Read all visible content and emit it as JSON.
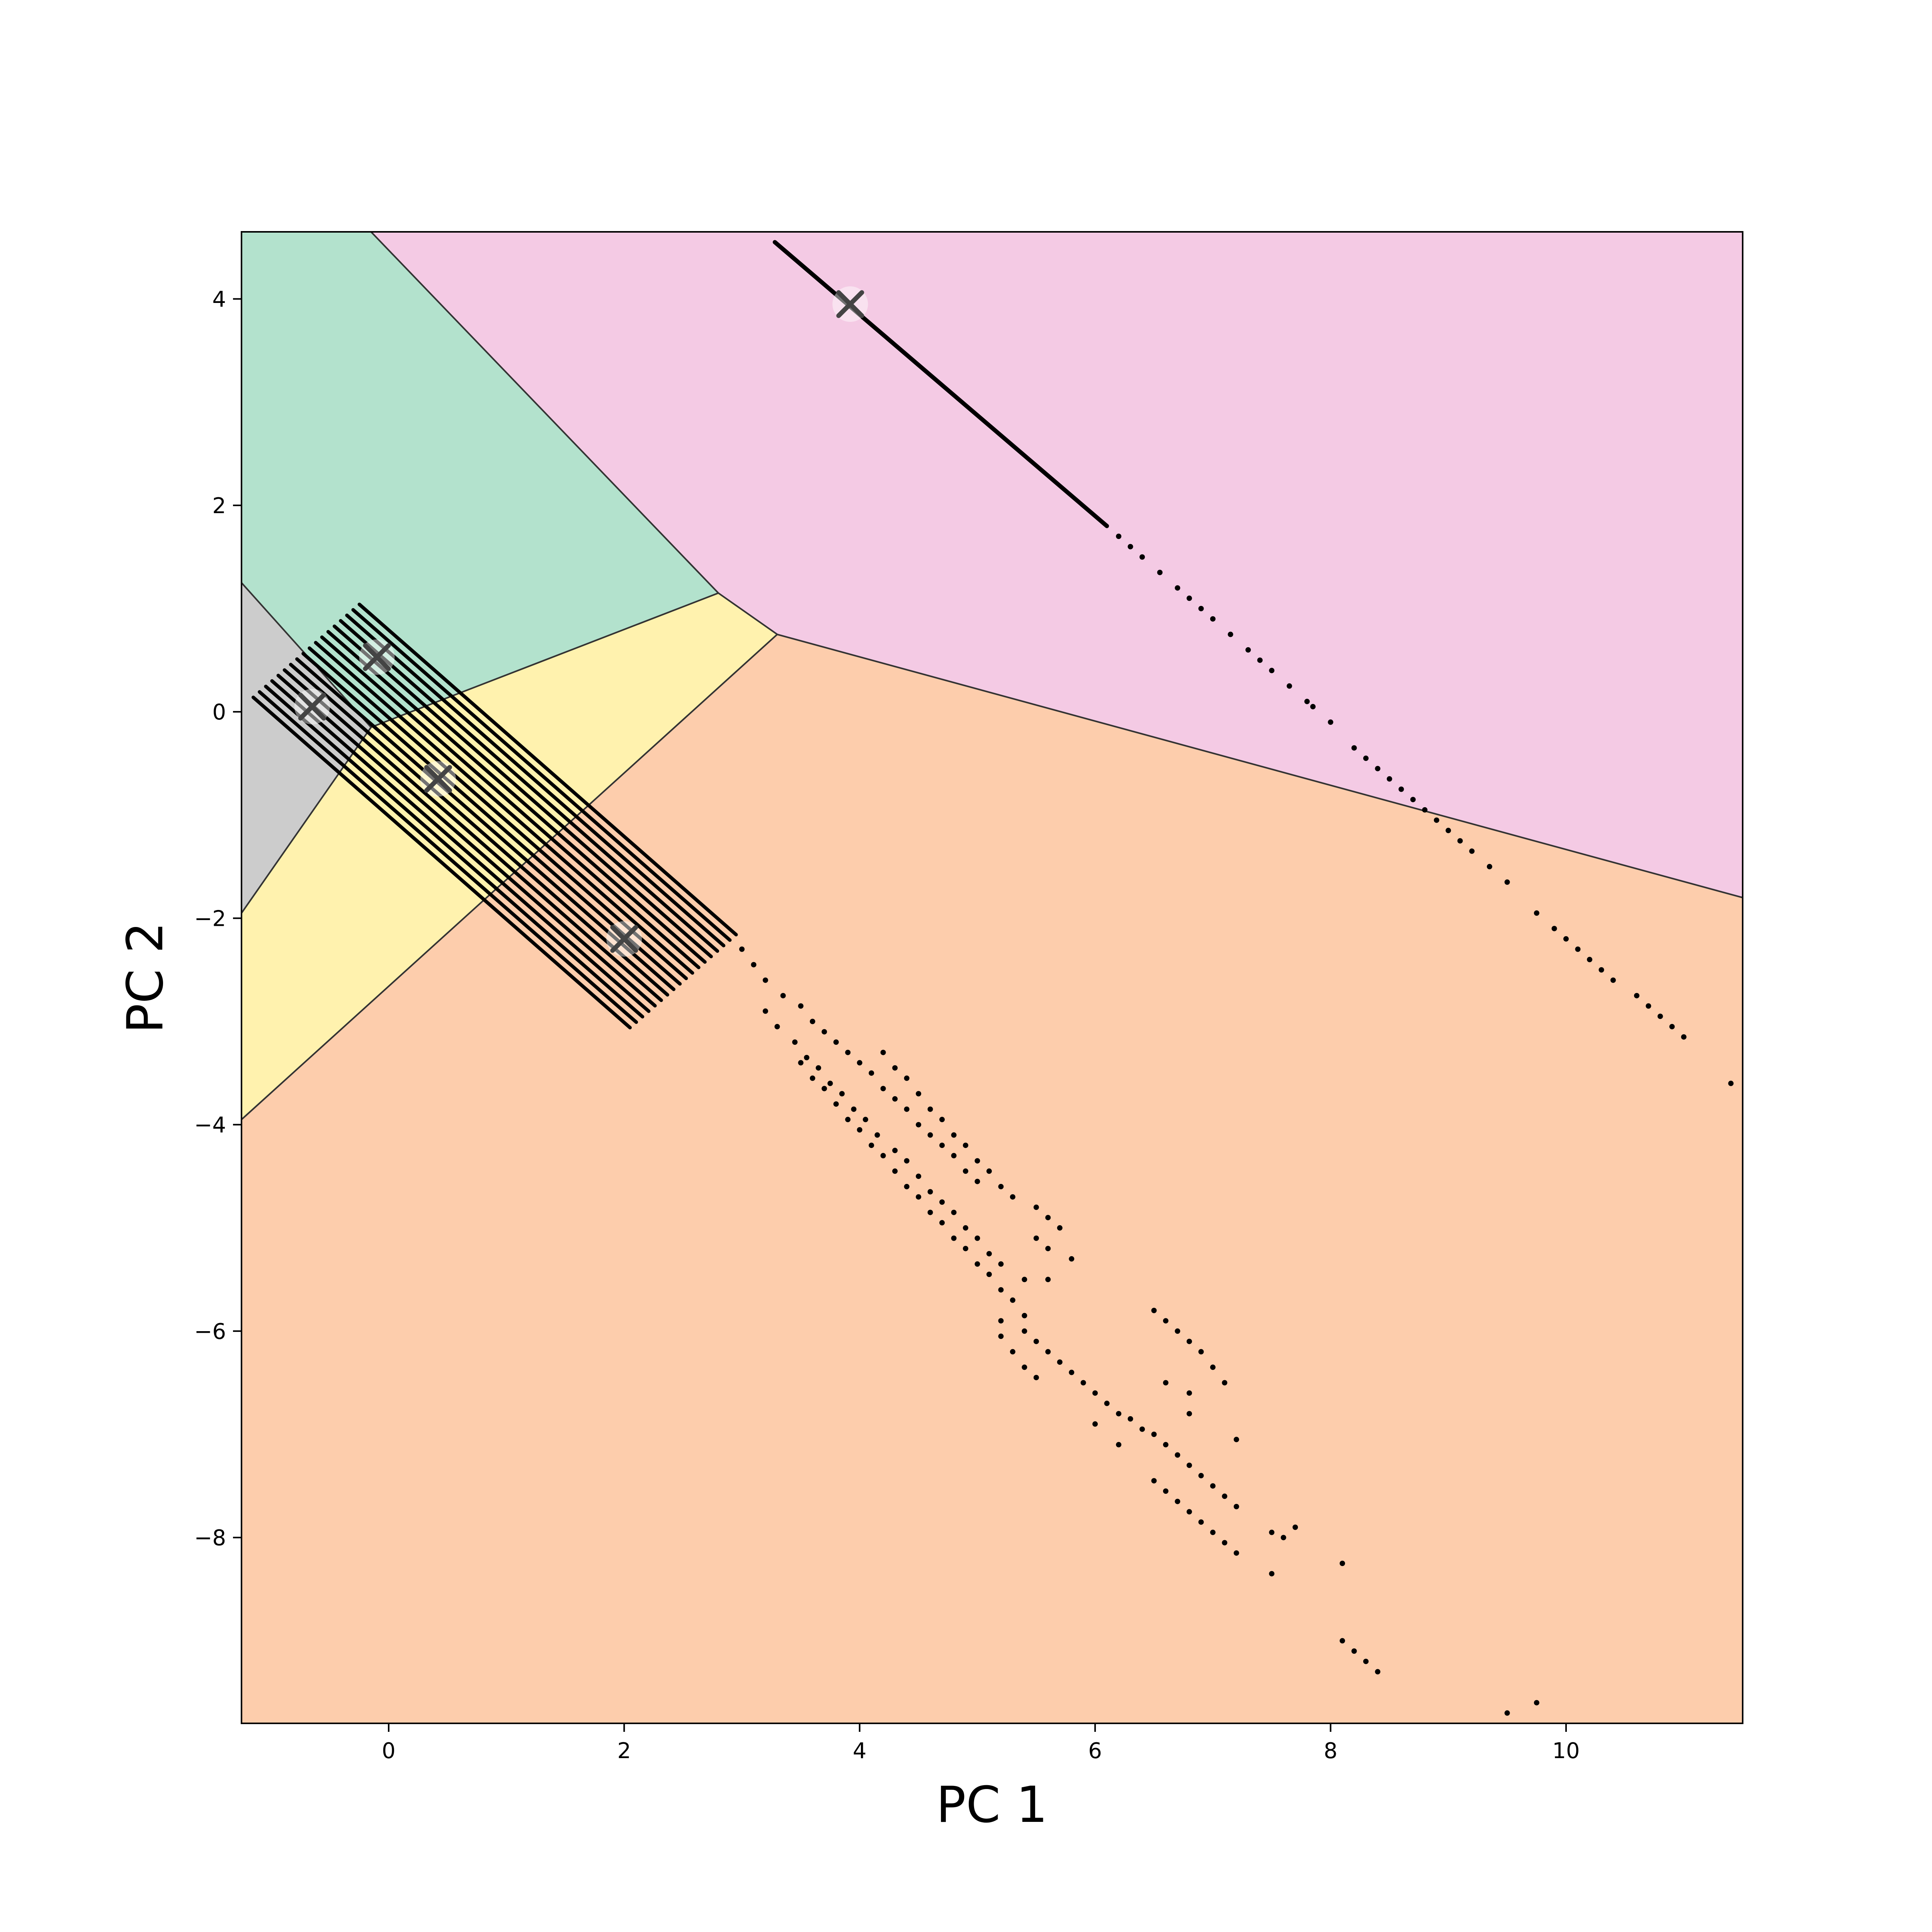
{
  "chart_data": {
    "type": "scatter",
    "title": "",
    "xlabel": "PC 1",
    "ylabel": "PC 2",
    "xlim": [
      -1.25,
      11.5
    ],
    "ylim": [
      -9.8,
      4.65
    ],
    "xticks": [
      0,
      2,
      4,
      6,
      8,
      10
    ],
    "yticks": [
      -8,
      -6,
      -4,
      -2,
      0,
      2,
      4
    ],
    "xtick_labels": [
      "0",
      "2",
      "4",
      "6",
      "8",
      "10"
    ],
    "ytick_labels": [
      "−8",
      "−6",
      "−4",
      "−2",
      "0",
      "2",
      "4"
    ],
    "grid": false,
    "legend": "none",
    "regions": [
      {
        "id": "orange",
        "color": "#fdcdac",
        "polygon": [
          [
            -1.25,
            -3.95
          ],
          [
            3.3,
            0.75
          ],
          [
            11.5,
            -1.8
          ],
          [
            11.5,
            -9.8
          ],
          [
            -1.25,
            -9.8
          ]
        ]
      },
      {
        "id": "pink",
        "color": "#f4cae4",
        "polygon": [
          [
            -0.15,
            4.65
          ],
          [
            11.5,
            4.65
          ],
          [
            11.5,
            -1.8
          ],
          [
            3.3,
            0.75
          ],
          [
            2.8,
            1.15
          ]
        ]
      },
      {
        "id": "green",
        "color": "#b3e2cd",
        "polygon": [
          [
            -1.25,
            4.65
          ],
          [
            -0.15,
            4.65
          ],
          [
            2.8,
            1.15
          ],
          [
            -0.15,
            -0.15
          ],
          [
            -1.25,
            1.25
          ]
        ]
      },
      {
        "id": "yellow",
        "color": "#fff2ae",
        "polygon": [
          [
            -1.25,
            -1.95
          ],
          [
            -0.15,
            -0.15
          ],
          [
            2.8,
            1.15
          ],
          [
            3.3,
            0.75
          ],
          [
            -1.25,
            -3.95
          ]
        ]
      },
      {
        "id": "gray",
        "color": "#cccccc",
        "polygon": [
          [
            -1.25,
            1.25
          ],
          [
            -0.15,
            -0.15
          ],
          [
            -1.25,
            -1.95
          ]
        ]
      }
    ],
    "centroids": [
      {
        "x": -0.65,
        "y": 0.05
      },
      {
        "x": -0.1,
        "y": 0.53
      },
      {
        "x": 0.42,
        "y": -0.65
      },
      {
        "x": 2.0,
        "y": -2.2
      },
      {
        "x": 3.92,
        "y": 3.95
      }
    ],
    "stripes": {
      "count": 18,
      "x_start": -1.15,
      "y_start": 0.14,
      "x_step": 0.053,
      "y_step": 0.053,
      "slope": -1.0,
      "length": 3.2
    },
    "upper_line": {
      "from": [
        3.28,
        4.55
      ],
      "to": [
        6.1,
        1.8
      ]
    },
    "points": [
      [
        6.2,
        1.7
      ],
      [
        6.3,
        1.6
      ],
      [
        6.4,
        1.5
      ],
      [
        6.55,
        1.35
      ],
      [
        6.7,
        1.2
      ],
      [
        6.8,
        1.1
      ],
      [
        6.9,
        1.0
      ],
      [
        7.0,
        0.9
      ],
      [
        7.15,
        0.75
      ],
      [
        7.3,
        0.6
      ],
      [
        7.4,
        0.5
      ],
      [
        7.5,
        0.4
      ],
      [
        7.65,
        0.25
      ],
      [
        7.8,
        0.1
      ],
      [
        7.85,
        0.05
      ],
      [
        8.0,
        -0.1
      ],
      [
        8.2,
        -0.35
      ],
      [
        8.3,
        -0.45
      ],
      [
        8.4,
        -0.55
      ],
      [
        8.5,
        -0.65
      ],
      [
        8.6,
        -0.75
      ],
      [
        8.7,
        -0.85
      ],
      [
        8.8,
        -0.95
      ],
      [
        8.9,
        -1.05
      ],
      [
        9.0,
        -1.15
      ],
      [
        9.1,
        -1.25
      ],
      [
        9.2,
        -1.35
      ],
      [
        9.35,
        -1.5
      ],
      [
        9.5,
        -1.65
      ],
      [
        9.75,
        -1.95
      ],
      [
        9.9,
        -2.1
      ],
      [
        10.0,
        -2.2
      ],
      [
        10.1,
        -2.3
      ],
      [
        10.2,
        -2.4
      ],
      [
        10.3,
        -2.5
      ],
      [
        10.4,
        -2.6
      ],
      [
        10.6,
        -2.75
      ],
      [
        10.7,
        -2.85
      ],
      [
        10.8,
        -2.95
      ],
      [
        10.9,
        -3.05
      ],
      [
        11.0,
        -3.15
      ],
      [
        11.4,
        -3.6
      ],
      [
        3.0,
        -2.3
      ],
      [
        3.1,
        -2.45
      ],
      [
        3.2,
        -2.6
      ],
      [
        3.35,
        -2.75
      ],
      [
        3.5,
        -2.85
      ],
      [
        3.6,
        -3.0
      ],
      [
        3.7,
        -3.1
      ],
      [
        3.8,
        -3.2
      ],
      [
        3.9,
        -3.3
      ],
      [
        4.0,
        -3.4
      ],
      [
        4.1,
        -3.5
      ],
      [
        4.2,
        -3.65
      ],
      [
        4.3,
        -3.75
      ],
      [
        4.4,
        -3.85
      ],
      [
        4.5,
        -4.0
      ],
      [
        4.6,
        -4.1
      ],
      [
        4.7,
        -4.2
      ],
      [
        4.8,
        -4.3
      ],
      [
        4.9,
        -4.45
      ],
      [
        5.0,
        -4.55
      ],
      [
        3.2,
        -2.9
      ],
      [
        3.3,
        -3.05
      ],
      [
        3.45,
        -3.2
      ],
      [
        3.55,
        -3.35
      ],
      [
        3.65,
        -3.45
      ],
      [
        3.75,
        -3.6
      ],
      [
        3.85,
        -3.7
      ],
      [
        3.95,
        -3.85
      ],
      [
        4.05,
        -3.95
      ],
      [
        4.15,
        -4.1
      ],
      [
        4.3,
        -4.25
      ],
      [
        4.4,
        -4.35
      ],
      [
        4.5,
        -4.5
      ],
      [
        4.6,
        -4.65
      ],
      [
        4.7,
        -4.75
      ],
      [
        4.8,
        -4.85
      ],
      [
        4.9,
        -5.0
      ],
      [
        5.0,
        -5.1
      ],
      [
        5.1,
        -5.25
      ],
      [
        5.2,
        -5.35
      ],
      [
        3.5,
        -3.4
      ],
      [
        3.6,
        -3.55
      ],
      [
        3.7,
        -3.65
      ],
      [
        3.8,
        -3.8
      ],
      [
        3.9,
        -3.95
      ],
      [
        4.0,
        -4.05
      ],
      [
        4.1,
        -4.2
      ],
      [
        4.2,
        -4.3
      ],
      [
        4.3,
        -4.45
      ],
      [
        4.4,
        -4.6
      ],
      [
        4.5,
        -4.7
      ],
      [
        4.6,
        -4.85
      ],
      [
        4.7,
        -4.95
      ],
      [
        4.8,
        -5.1
      ],
      [
        4.9,
        -5.2
      ],
      [
        5.0,
        -5.35
      ],
      [
        5.1,
        -5.45
      ],
      [
        5.2,
        -5.6
      ],
      [
        5.3,
        -5.7
      ],
      [
        5.4,
        -5.85
      ],
      [
        4.2,
        -3.3
      ],
      [
        4.3,
        -3.45
      ],
      [
        4.4,
        -3.55
      ],
      [
        4.5,
        -3.7
      ],
      [
        4.6,
        -3.85
      ],
      [
        4.7,
        -3.95
      ],
      [
        4.8,
        -4.1
      ],
      [
        4.9,
        -4.2
      ],
      [
        5.0,
        -4.35
      ],
      [
        5.1,
        -4.45
      ],
      [
        5.2,
        -4.6
      ],
      [
        5.3,
        -4.7
      ],
      [
        5.5,
        -4.8
      ],
      [
        5.6,
        -4.9
      ],
      [
        5.7,
        -5.0
      ],
      [
        5.5,
        -5.1
      ],
      [
        5.6,
        -5.2
      ],
      [
        5.4,
        -5.5
      ],
      [
        5.6,
        -5.5
      ],
      [
        5.8,
        -5.3
      ],
      [
        5.2,
        -5.9
      ],
      [
        5.4,
        -6.0
      ],
      [
        5.5,
        -6.1
      ],
      [
        5.6,
        -6.2
      ],
      [
        5.7,
        -6.3
      ],
      [
        5.8,
        -6.4
      ],
      [
        5.9,
        -6.5
      ],
      [
        6.0,
        -6.6
      ],
      [
        6.1,
        -6.7
      ],
      [
        6.2,
        -6.8
      ],
      [
        5.2,
        -6.05
      ],
      [
        5.3,
        -6.2
      ],
      [
        5.4,
        -6.35
      ],
      [
        5.5,
        -6.45
      ],
      [
        6.0,
        -6.9
      ],
      [
        6.2,
        -7.1
      ],
      [
        6.3,
        -6.85
      ],
      [
        6.4,
        -6.95
      ],
      [
        6.5,
        -7.0
      ],
      [
        6.6,
        -7.1
      ],
      [
        6.7,
        -7.2
      ],
      [
        6.8,
        -7.3
      ],
      [
        6.9,
        -7.4
      ],
      [
        7.0,
        -7.5
      ],
      [
        7.1,
        -7.6
      ],
      [
        7.2,
        -7.7
      ],
      [
        6.5,
        -5.8
      ],
      [
        6.6,
        -5.9
      ],
      [
        6.7,
        -6.0
      ],
      [
        6.8,
        -6.1
      ],
      [
        6.9,
        -6.2
      ],
      [
        7.0,
        -6.35
      ],
      [
        6.6,
        -6.5
      ],
      [
        6.8,
        -6.6
      ],
      [
        7.1,
        -6.5
      ],
      [
        6.8,
        -6.8
      ],
      [
        7.2,
        -7.05
      ],
      [
        6.5,
        -7.45
      ],
      [
        6.6,
        -7.55
      ],
      [
        6.7,
        -7.65
      ],
      [
        6.8,
        -7.75
      ],
      [
        6.9,
        -7.85
      ],
      [
        7.0,
        -7.95
      ],
      [
        7.1,
        -8.05
      ],
      [
        7.2,
        -8.15
      ],
      [
        7.5,
        -7.95
      ],
      [
        7.6,
        -8.0
      ],
      [
        7.7,
        -7.9
      ],
      [
        7.5,
        -8.35
      ],
      [
        8.1,
        -8.25
      ],
      [
        8.1,
        -9.0
      ],
      [
        8.2,
        -9.1
      ],
      [
        8.3,
        -9.2
      ],
      [
        8.4,
        -9.3
      ],
      [
        9.5,
        -9.7
      ],
      [
        9.75,
        -9.6
      ]
    ]
  }
}
